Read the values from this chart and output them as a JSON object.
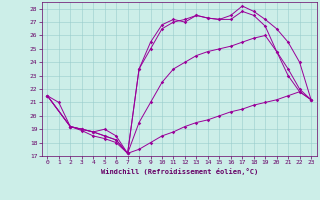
{
  "background_color": "#cceee8",
  "grid_color": "#99cccc",
  "line_color": "#990099",
  "xlabel": "Windchill (Refroidissement éolien,°C)",
  "xlabel_color": "#660066",
  "tick_color": "#660066",
  "xlim": [
    -0.5,
    23.5
  ],
  "ylim": [
    17,
    28.5
  ],
  "yticks": [
    17,
    18,
    19,
    20,
    21,
    22,
    23,
    24,
    25,
    26,
    27,
    28
  ],
  "xticks": [
    0,
    1,
    2,
    3,
    4,
    5,
    6,
    7,
    8,
    9,
    10,
    11,
    12,
    13,
    14,
    15,
    16,
    17,
    18,
    19,
    20,
    21,
    22,
    23
  ],
  "series": [
    {
      "x": [
        0,
        1,
        2,
        3,
        4,
        5,
        6,
        7,
        8,
        9,
        10,
        11,
        12,
        13,
        14,
        15,
        16,
        17,
        18,
        19,
        20,
        21,
        22,
        23
      ],
      "y": [
        21.5,
        21.0,
        19.2,
        18.9,
        18.5,
        18.3,
        18.0,
        17.2,
        17.5,
        18.0,
        18.5,
        18.8,
        19.2,
        19.5,
        19.7,
        20.0,
        20.3,
        20.5,
        20.8,
        21.0,
        21.2,
        21.5,
        21.8,
        21.2
      ]
    },
    {
      "x": [
        0,
        2,
        3,
        4,
        5,
        6,
        7,
        8,
        9,
        10,
        11,
        12,
        13,
        14,
        15,
        16,
        17,
        18,
        19,
        20,
        21,
        22,
        23
      ],
      "y": [
        21.5,
        19.2,
        19.0,
        18.8,
        18.5,
        18.2,
        17.2,
        19.5,
        21.0,
        22.5,
        23.5,
        24.0,
        24.5,
        24.8,
        25.0,
        25.2,
        25.5,
        25.8,
        26.0,
        24.8,
        23.5,
        22.0,
        21.2
      ]
    },
    {
      "x": [
        0,
        2,
        3,
        4,
        5,
        6,
        7,
        8,
        9,
        10,
        11,
        12,
        13,
        14,
        15,
        16,
        17,
        18,
        19,
        20,
        21,
        22,
        23
      ],
      "y": [
        21.5,
        19.2,
        19.0,
        18.8,
        18.5,
        18.2,
        17.2,
        23.5,
        25.0,
        26.5,
        27.0,
        27.2,
        27.5,
        27.3,
        27.2,
        27.2,
        27.8,
        27.5,
        26.7,
        24.8,
        23.0,
        21.8,
        21.2
      ]
    },
    {
      "x": [
        0,
        2,
        3,
        4,
        5,
        6,
        7,
        8,
        9,
        10,
        11,
        12,
        13,
        14,
        15,
        16,
        17,
        18,
        19,
        20,
        21,
        22,
        23
      ],
      "y": [
        21.5,
        19.2,
        19.0,
        18.8,
        19.0,
        18.5,
        17.2,
        23.5,
        25.5,
        26.8,
        27.2,
        27.0,
        27.5,
        27.3,
        27.2,
        27.5,
        28.2,
        27.8,
        27.2,
        26.5,
        25.5,
        24.0,
        21.2
      ]
    }
  ]
}
